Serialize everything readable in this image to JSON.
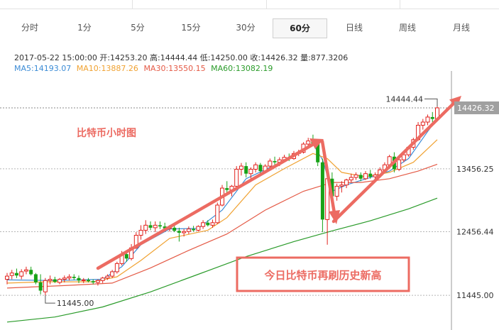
{
  "tabs": [
    {
      "label": "分时",
      "active": false
    },
    {
      "label": "1分",
      "active": false
    },
    {
      "label": "5分",
      "active": false
    },
    {
      "label": "15分",
      "active": false
    },
    {
      "label": "30分",
      "active": false
    },
    {
      "label": "60分",
      "active": true
    },
    {
      "label": "日线",
      "active": false
    },
    {
      "label": "周线",
      "active": false
    },
    {
      "label": "月线",
      "active": false
    }
  ],
  "info": {
    "line1": "2017-05-22 15:00:00  开:14253.20 高:14444.44 低:14250.00 收:14426.32 量:877.3206",
    "ma5": "MA5:14193.07",
    "ma10": "MA10:13887.26",
    "ma30": "MA30:13550.15",
    "ma60": "MA60:13082.19"
  },
  "colors": {
    "up": "#e2221d",
    "down": "#17a217",
    "ma5": "#3c8cd6",
    "ma10": "#f0a232",
    "ma30": "#e45a46",
    "ma60": "#2a9b2a",
    "annotation": "#ec6b62"
  },
  "chart_data": {
    "type": "candlestick",
    "ylim": [
      10950,
      14900
    ],
    "y_ticks": [
      "13456.25",
      "12456.44",
      "11445.00"
    ],
    "last_price_label": "14426.32",
    "max_label": "14444.44",
    "min_label": "11445.00",
    "annotation_title": "比特币小时图",
    "annotation_box": "今日比特币再刷历史新高",
    "candles": [
      [
        11700,
        11800,
        11620,
        11750
      ],
      [
        11760,
        11850,
        11700,
        11800
      ],
      [
        11800,
        11870,
        11720,
        11760
      ],
      [
        11750,
        11860,
        11700,
        11820
      ],
      [
        11830,
        11900,
        11780,
        11850
      ],
      [
        11850,
        11900,
        11760,
        11780
      ],
      [
        11780,
        11800,
        11620,
        11650
      ],
      [
        11650,
        11780,
        11460,
        11520
      ],
      [
        11500,
        11720,
        11445,
        11680
      ],
      [
        11680,
        11760,
        11620,
        11700
      ],
      [
        11700,
        11740,
        11640,
        11660
      ],
      [
        11650,
        11720,
        11620,
        11700
      ],
      [
        11700,
        11760,
        11650,
        11720
      ],
      [
        11720,
        11780,
        11680,
        11740
      ],
      [
        11740,
        11780,
        11690,
        11720
      ],
      [
        11720,
        11760,
        11640,
        11680
      ],
      [
        11680,
        11720,
        11640,
        11690
      ],
      [
        11690,
        11720,
        11650,
        11670
      ],
      [
        11670,
        11700,
        11620,
        11650
      ],
      [
        11650,
        11700,
        11600,
        11680
      ],
      [
        11680,
        11740,
        11640,
        11720
      ],
      [
        11720,
        11780,
        11690,
        11750
      ],
      [
        11750,
        11850,
        11720,
        11820
      ],
      [
        11820,
        11980,
        11790,
        11950
      ],
      [
        11950,
        12150,
        11920,
        12100
      ],
      [
        12100,
        12160,
        11980,
        12030
      ],
      [
        12030,
        12260,
        12000,
        12200
      ],
      [
        12200,
        12450,
        12180,
        12400
      ],
      [
        12400,
        12560,
        12330,
        12480
      ],
      [
        12480,
        12640,
        12420,
        12560
      ],
      [
        12560,
        12620,
        12480,
        12520
      ],
      [
        12520,
        12620,
        12450,
        12560
      ],
      [
        12560,
        12620,
        12500,
        12540
      ],
      [
        12540,
        12600,
        12480,
        12510
      ],
      [
        12510,
        12560,
        12460,
        12520
      ],
      [
        12520,
        12560,
        12450,
        12470
      ],
      [
        12470,
        12520,
        12300,
        12440
      ],
      [
        12440,
        12500,
        12380,
        12460
      ],
      [
        12460,
        12540,
        12420,
        12500
      ],
      [
        12500,
        12550,
        12460,
        12480
      ],
      [
        12480,
        12560,
        12460,
        12540
      ],
      [
        12540,
        12640,
        12500,
        12600
      ],
      [
        12600,
        12640,
        12540,
        12560
      ],
      [
        12560,
        12650,
        12520,
        12600
      ],
      [
        12600,
        12920,
        12580,
        12880
      ],
      [
        12880,
        13200,
        12860,
        13150
      ],
      [
        13150,
        13260,
        13050,
        13120
      ],
      [
        13120,
        13200,
        13020,
        13180
      ],
      [
        13180,
        13500,
        13150,
        13450
      ],
      [
        13450,
        13550,
        13350,
        13500
      ],
      [
        13500,
        13560,
        13320,
        13380
      ],
      [
        13380,
        13480,
        13300,
        13450
      ],
      [
        13450,
        13560,
        13400,
        13520
      ],
      [
        13520,
        13550,
        13380,
        13420
      ],
      [
        13420,
        13530,
        13400,
        13500
      ],
      [
        13500,
        13620,
        13460,
        13580
      ],
      [
        13580,
        13650,
        13520,
        13560
      ],
      [
        13560,
        13640,
        13500,
        13600
      ],
      [
        13600,
        13680,
        13560,
        13640
      ],
      [
        13640,
        13700,
        13580,
        13620
      ],
      [
        13620,
        13740,
        13600,
        13700
      ],
      [
        13700,
        13760,
        13660,
        13720
      ],
      [
        13720,
        13880,
        13700,
        13850
      ],
      [
        13850,
        13950,
        13800,
        13900
      ],
      [
        13900,
        14000,
        13850,
        13860
      ],
      [
        13860,
        13880,
        13500,
        13560
      ],
      [
        13560,
        13620,
        12450,
        12650
      ],
      [
        12650,
        13340,
        12250,
        13300
      ],
      [
        13300,
        13400,
        12950,
        13020
      ],
      [
        13020,
        13220,
        12950,
        13180
      ],
      [
        13180,
        13260,
        13080,
        13200
      ],
      [
        13200,
        13300,
        13150,
        13280
      ],
      [
        13280,
        13380,
        13240,
        13320
      ],
      [
        13320,
        13400,
        13280,
        13360
      ],
      [
        13360,
        13400,
        13260,
        13300
      ],
      [
        13300,
        13420,
        13280,
        13380
      ],
      [
        13380,
        13440,
        13300,
        13330
      ],
      [
        13330,
        13400,
        13280,
        13360
      ],
      [
        13360,
        13480,
        13340,
        13440
      ],
      [
        13440,
        13560,
        13400,
        13520
      ],
      [
        13520,
        13680,
        13500,
        13650
      ],
      [
        13650,
        13720,
        13400,
        13450
      ],
      [
        13450,
        13640,
        13420,
        13600
      ],
      [
        13600,
        13700,
        13560,
        13680
      ],
      [
        13680,
        13820,
        13650,
        13800
      ],
      [
        13800,
        13950,
        13760,
        13920
      ],
      [
        13920,
        14200,
        13900,
        14150
      ],
      [
        14150,
        14250,
        14080,
        14200
      ],
      [
        14200,
        14320,
        14150,
        14280
      ],
      [
        14280,
        14360,
        14200,
        14250
      ],
      [
        14253.2,
        14444.44,
        14250,
        14426.32
      ]
    ],
    "ma_series": [
      {
        "name": "MA5",
        "values": [
          [
            0,
            11690
          ],
          [
            10,
            11680
          ],
          [
            20,
            11700
          ],
          [
            24,
            11900
          ],
          [
            28,
            12250
          ],
          [
            34,
            12500
          ],
          [
            40,
            12510
          ],
          [
            45,
            12800
          ],
          [
            50,
            13300
          ],
          [
            55,
            13480
          ],
          [
            60,
            13650
          ],
          [
            64,
            13850
          ],
          [
            66,
            13600
          ],
          [
            68,
            13100
          ],
          [
            71,
            13200
          ],
          [
            76,
            13320
          ],
          [
            80,
            13420
          ],
          [
            84,
            13620
          ],
          [
            88,
            14050
          ],
          [
            90,
            14250
          ]
        ]
      },
      {
        "name": "MA10",
        "values": [
          [
            0,
            11640
          ],
          [
            8,
            11660
          ],
          [
            18,
            11660
          ],
          [
            23,
            11740
          ],
          [
            28,
            12000
          ],
          [
            34,
            12350
          ],
          [
            42,
            12480
          ],
          [
            46,
            12680
          ],
          [
            52,
            13200
          ],
          [
            58,
            13460
          ],
          [
            64,
            13700
          ],
          [
            67,
            13620
          ],
          [
            70,
            13400
          ],
          [
            75,
            13330
          ],
          [
            80,
            13400
          ],
          [
            85,
            13560
          ],
          [
            90,
            13920
          ]
        ]
      },
      {
        "name": "MA30",
        "values": [
          [
            0,
            11560
          ],
          [
            12,
            11600
          ],
          [
            22,
            11640
          ],
          [
            30,
            11880
          ],
          [
            38,
            12160
          ],
          [
            46,
            12420
          ],
          [
            54,
            12800
          ],
          [
            62,
            13100
          ],
          [
            68,
            13240
          ],
          [
            74,
            13240
          ],
          [
            80,
            13300
          ],
          [
            86,
            13420
          ],
          [
            90,
            13530
          ]
        ]
      },
      {
        "name": "MA60",
        "values": [
          [
            0,
            11020
          ],
          [
            10,
            11100
          ],
          [
            20,
            11260
          ],
          [
            30,
            11500
          ],
          [
            40,
            11780
          ],
          [
            50,
            12060
          ],
          [
            60,
            12300
          ],
          [
            68,
            12470
          ],
          [
            76,
            12630
          ],
          [
            84,
            12820
          ],
          [
            90,
            12990
          ]
        ]
      }
    ]
  }
}
